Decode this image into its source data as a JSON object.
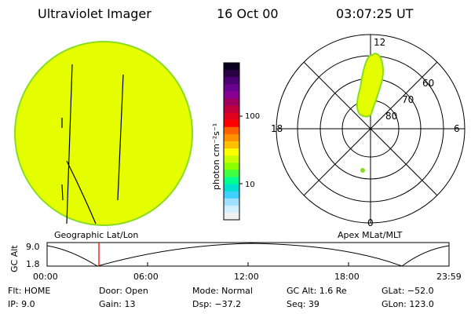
{
  "header": {
    "instrument": "Ultraviolet Imager",
    "date": "16 Oct 00",
    "time": "03:07:25 UT"
  },
  "colorbar": {
    "label": "photon cm⁻²s⁻¹",
    "ticks": [
      "100",
      "10"
    ],
    "colors_top_to_bottom": [
      "#0a0020",
      "#2a0045",
      "#4a0070",
      "#6a0090",
      "#8a0090",
      "#a00060",
      "#c0003a",
      "#e00020",
      "#ff0000",
      "#ff6000",
      "#ff9000",
      "#ffc000",
      "#ffff00",
      "#c8ff00",
      "#8cff00",
      "#40ff40",
      "#00ff90",
      "#00e0d0",
      "#40d0ff",
      "#a0e0ff",
      "#d0f0ff",
      "#f0f0f0"
    ]
  },
  "polar": {
    "mlt_labels": {
      "top": "12",
      "left": "18",
      "right": "6",
      "bottom": "0"
    },
    "lat_labels": [
      "60",
      "70",
      "80"
    ]
  },
  "panels": {
    "left_caption": "Geographic Lat/Lon",
    "right_caption": "Apex MLat/MLT"
  },
  "altitude_plot": {
    "ylabel": "GC Alt",
    "yticks": [
      "9.0",
      "1.8"
    ],
    "xticks": [
      "00:00",
      "06:00",
      "12:00",
      "18:00",
      "23:59"
    ],
    "current_time_color": "#ff0000"
  },
  "info": {
    "flt": "Flt: HOME",
    "ip": "IP:  9.0",
    "door": "Door: Open",
    "gain": "Gain: 13",
    "mode": "Mode: Normal",
    "dsp": "Dsp:  −37.2",
    "gcalt": "GC Alt: 1.6 Re",
    "seq": "Seq: 39",
    "glat": "GLat: −52.0",
    "glon": "GLon: 123.0"
  },
  "colors": {
    "fill": "#e6ff00",
    "edge": "#88dd22"
  }
}
